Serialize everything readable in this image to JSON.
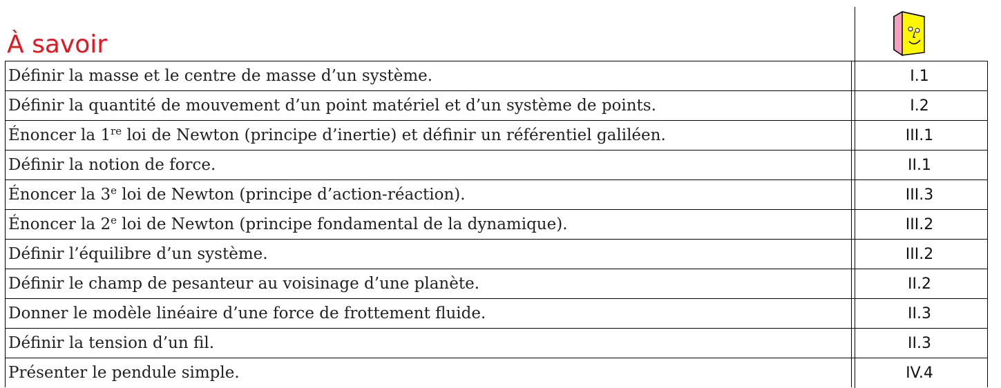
{
  "header": {
    "title": "À savoir"
  },
  "table": {
    "rows": [
      {
        "item": "Définir la masse et le centre de masse d’un système.",
        "ref": "I.1"
      },
      {
        "item": "Définir la quantité de mouvement d’un point matériel et d’un système de points.",
        "ref": "I.2"
      },
      {
        "item": {
          "before": "Énoncer la 1",
          "sup": "re",
          "after": " loi de Newton (principe d’inertie) et définir un référentiel galiléen."
        },
        "ref": "III.1"
      },
      {
        "item": "Définir la notion de force.",
        "ref": "II.1"
      },
      {
        "item": {
          "before": "Énoncer la 3",
          "sup": "e",
          "after": " loi de Newton (principe d’action-réaction)."
        },
        "ref": "III.3"
      },
      {
        "item": {
          "before": "Énoncer la 2",
          "sup": "e",
          "after": " loi de Newton (principe fondamental de la dynamique)."
        },
        "ref": "III.2"
      },
      {
        "item": "Définir l’équilibre d’un système.",
        "ref": "III.2"
      },
      {
        "item": "Définir le champ de pesanteur au voisinage d’une planète.",
        "ref": "II.2"
      },
      {
        "item": "Donner le modèle linéaire d’une force de frottement fluide.",
        "ref": "II.3"
      },
      {
        "item": "Définir la tension d’un fil.",
        "ref": "II.3"
      },
      {
        "item": "Présenter le pendule simple.",
        "ref": "IV.4"
      }
    ]
  }
}
